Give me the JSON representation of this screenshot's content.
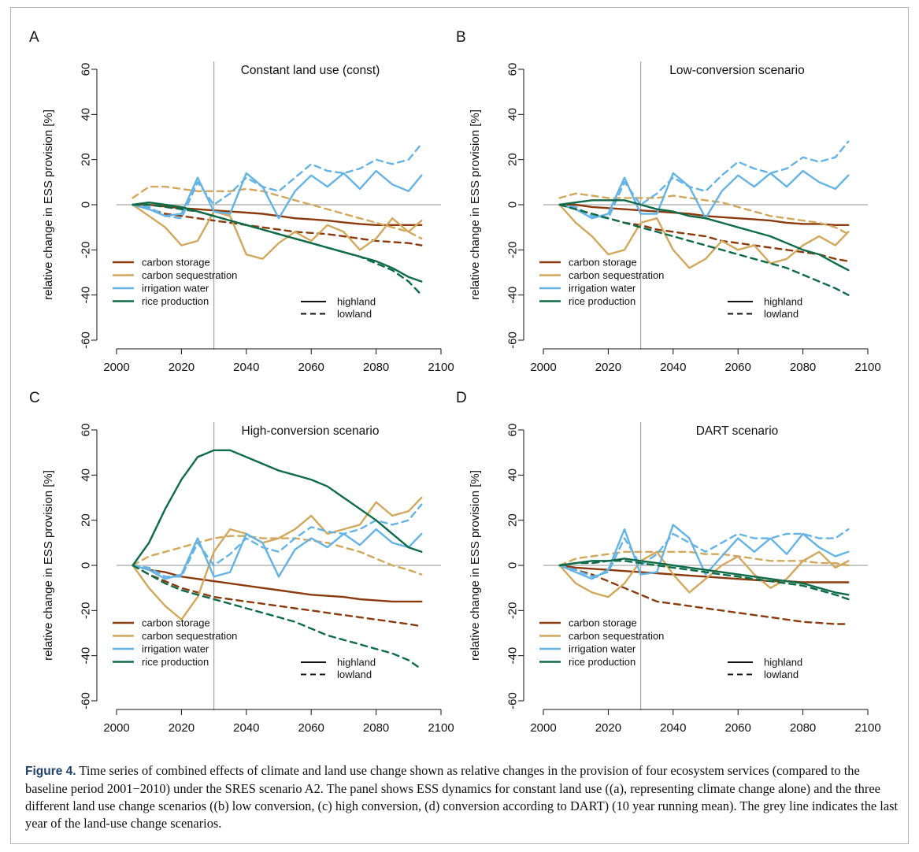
{
  "figure": {
    "caption_label": "Figure 4.",
    "caption_text": " Time series of combined effects of climate and land use change shown as relative changes in the provision of four ecosystem services (compared to the baseline period 2001−2010) under the SRES scenario A2. The panel shows ESS dynamics for constant land use ((a), representing climate change alone) and the three different land use change scenarios ((b) low conversion, (c) high conversion, (d) conversion according to DART) (10 year running mean). The grey line indicates the last year of the land-use change scenarios."
  },
  "colors": {
    "carbon_storage": "#8b3a0e",
    "carbon_sequestration": "#d2a75b",
    "irrigation_water": "#63b3e6",
    "rice_production": "#0e6b47",
    "reference_line": "#a6a6a6"
  },
  "legend": {
    "services": [
      "carbon storage",
      "carbon sequestration",
      "irrigation water",
      "rice production"
    ],
    "line_types": [
      "highland",
      "lowland"
    ]
  },
  "chart_data": [
    {
      "panel": "A",
      "type": "line",
      "title": "Constant land use (const)",
      "ylabel": "relative change in ESS provision [%]",
      "xlim": [
        2000,
        2100
      ],
      "ylim": [
        -60,
        60
      ],
      "xticks": [
        2000,
        2020,
        2040,
        2060,
        2080,
        2100
      ],
      "yticks": [
        -60,
        -40,
        -20,
        0,
        20,
        40,
        60
      ],
      "vline": 2030,
      "x": [
        2005,
        2010,
        2015,
        2020,
        2025,
        2030,
        2035,
        2040,
        2045,
        2050,
        2055,
        2060,
        2065,
        2070,
        2075,
        2080,
        2085,
        2090,
        2094
      ],
      "series": [
        {
          "name": "carbon storage",
          "style": "highland",
          "values": [
            0,
            0,
            -0.8,
            -1.5,
            -2,
            -2.5,
            -3,
            -3.5,
            -4,
            -5,
            -6,
            -6.5,
            -7,
            -7.8,
            -8.5,
            -9,
            -9,
            -9,
            -9
          ]
        },
        {
          "name": "carbon storage",
          "style": "lowland",
          "values": [
            0,
            -2,
            -4,
            -5,
            -6,
            -7,
            -8,
            -9,
            -10,
            -11,
            -12,
            -12.5,
            -13,
            -14,
            -15,
            -16,
            -16.5,
            -17,
            -18
          ]
        },
        {
          "name": "carbon sequestration",
          "style": "highland",
          "values": [
            0,
            -5,
            -10,
            -18,
            -16,
            -3,
            -5,
            -22,
            -24,
            -17,
            -12,
            -16,
            -9,
            -12,
            -20,
            -15,
            -6,
            -12,
            -7
          ]
        },
        {
          "name": "carbon sequestration",
          "style": "lowland",
          "values": [
            3,
            8,
            8,
            7,
            6,
            6,
            6,
            7,
            6,
            4,
            2,
            0,
            -2,
            -4,
            -6,
            -8,
            -10,
            -12,
            -15
          ]
        },
        {
          "name": "irrigation water",
          "style": "highland",
          "values": [
            0,
            -2,
            -5,
            -4,
            12,
            -3,
            -4,
            14,
            8,
            -6,
            6,
            13,
            8,
            14,
            7,
            15,
            9,
            6,
            13
          ]
        },
        {
          "name": "irrigation water",
          "style": "lowland",
          "values": [
            0,
            -1,
            -5,
            -6,
            10,
            0,
            5,
            12,
            8,
            6,
            12,
            18,
            15,
            14,
            16,
            20,
            18,
            20,
            27
          ]
        },
        {
          "name": "rice production",
          "style": "highland",
          "values": [
            0,
            1,
            0,
            -1,
            -3,
            -5,
            -7,
            -9,
            -11,
            -13,
            -15,
            -17,
            -19,
            -21,
            -23,
            -25,
            -28,
            -32,
            -34
          ]
        },
        {
          "name": "rice production",
          "style": "lowland",
          "values": [
            0,
            0,
            -1,
            -2,
            -3,
            -5,
            -7,
            -9,
            -11,
            -13,
            -15,
            -17,
            -19,
            -21,
            -23,
            -26,
            -29,
            -34,
            -40
          ]
        }
      ]
    },
    {
      "panel": "B",
      "type": "line",
      "title": "Low-conversion scenario",
      "ylabel": "relative change in ESS provision [%]",
      "xlim": [
        2000,
        2100
      ],
      "ylim": [
        -60,
        60
      ],
      "xticks": [
        2000,
        2020,
        2040,
        2060,
        2080,
        2100
      ],
      "yticks": [
        -60,
        -40,
        -20,
        0,
        20,
        40,
        60
      ],
      "vline": 2030,
      "x": [
        2005,
        2010,
        2015,
        2020,
        2025,
        2030,
        2035,
        2040,
        2045,
        2050,
        2055,
        2060,
        2065,
        2070,
        2075,
        2080,
        2085,
        2090,
        2094
      ],
      "series": [
        {
          "name": "carbon storage",
          "style": "highland",
          "values": [
            0,
            0,
            -1,
            -1.5,
            -2,
            -2.5,
            -3,
            -3.5,
            -4,
            -5,
            -5.5,
            -6,
            -6.5,
            -7,
            -8,
            -8.5,
            -8.5,
            -9,
            -9
          ]
        },
        {
          "name": "carbon storage",
          "style": "lowland",
          "values": [
            0,
            -2,
            -4,
            -6,
            -8,
            -9,
            -11,
            -12,
            -13,
            -14,
            -16,
            -17,
            -18,
            -19,
            -20,
            -21,
            -22,
            -24,
            -25
          ]
        },
        {
          "name": "carbon sequestration",
          "style": "highland",
          "values": [
            0,
            -8,
            -14,
            -22,
            -20,
            -8,
            -6,
            -20,
            -28,
            -24,
            -16,
            -20,
            -18,
            -26,
            -24,
            -18,
            -14,
            -18,
            -12
          ]
        },
        {
          "name": "carbon sequestration",
          "style": "lowland",
          "values": [
            3,
            5,
            4,
            3,
            3,
            3,
            3,
            4,
            3,
            2,
            1,
            -1,
            -3,
            -5,
            -6,
            -7,
            -8,
            -10,
            -13
          ]
        },
        {
          "name": "irrigation water",
          "style": "highland",
          "values": [
            0,
            -2,
            -6,
            -4,
            12,
            -4,
            -4,
            14,
            8,
            -6,
            6,
            13,
            8,
            14,
            8,
            15,
            10,
            7,
            13
          ]
        },
        {
          "name": "irrigation water",
          "style": "lowland",
          "values": [
            0,
            -1,
            -5,
            -6,
            10,
            0,
            5,
            12,
            8,
            6,
            13,
            19,
            16,
            14,
            16,
            21,
            19,
            21,
            28
          ]
        },
        {
          "name": "rice production",
          "style": "highland",
          "values": [
            0,
            1,
            2,
            2,
            2,
            0,
            -2,
            -3,
            -5,
            -6,
            -8,
            -10,
            -12,
            -14,
            -17,
            -20,
            -22,
            -26,
            -29
          ]
        },
        {
          "name": "rice production",
          "style": "lowland",
          "values": [
            0,
            -2,
            -4,
            -6,
            -8,
            -10,
            -12,
            -14,
            -16,
            -18,
            -20,
            -22,
            -24,
            -26,
            -28,
            -31,
            -34,
            -37,
            -40
          ]
        }
      ]
    },
    {
      "panel": "C",
      "type": "line",
      "title": "High-conversion scenario",
      "ylabel": "relative change in ESS provision [%]",
      "xlim": [
        2000,
        2100
      ],
      "ylim": [
        -60,
        60
      ],
      "xticks": [
        2000,
        2020,
        2040,
        2060,
        2080,
        2100
      ],
      "yticks": [
        -60,
        -40,
        -20,
        0,
        20,
        40,
        60
      ],
      "vline": 2030,
      "x": [
        2005,
        2010,
        2015,
        2020,
        2025,
        2030,
        2035,
        2040,
        2045,
        2050,
        2055,
        2060,
        2065,
        2070,
        2075,
        2080,
        2085,
        2090,
        2094
      ],
      "series": [
        {
          "name": "carbon storage",
          "style": "highland",
          "values": [
            0,
            -2,
            -3,
            -5,
            -6,
            -7,
            -8,
            -9,
            -10,
            -11,
            -12,
            -13,
            -13.5,
            -14,
            -15,
            -15.5,
            -16,
            -16,
            -16
          ]
        },
        {
          "name": "carbon storage",
          "style": "lowland",
          "values": [
            0,
            -4,
            -7,
            -10,
            -12,
            -14,
            -15,
            -16,
            -17,
            -18,
            -19,
            -20,
            -21,
            -22,
            -23,
            -24,
            -25,
            -26,
            -27
          ]
        },
        {
          "name": "carbon sequestration",
          "style": "highland",
          "values": [
            0,
            -10,
            -18,
            -24,
            -14,
            6,
            16,
            14,
            10,
            12,
            16,
            22,
            14,
            16,
            18,
            28,
            22,
            24,
            30
          ]
        },
        {
          "name": "carbon sequestration",
          "style": "lowland",
          "values": [
            0,
            4,
            6,
            8,
            10,
            12,
            13,
            13,
            12,
            12,
            12,
            11,
            10,
            8,
            6,
            3,
            0,
            -2,
            -4
          ]
        },
        {
          "name": "irrigation water",
          "style": "highland",
          "values": [
            0,
            -2,
            -6,
            -4,
            12,
            -5,
            -3,
            14,
            10,
            -5,
            7,
            12,
            8,
            14,
            9,
            16,
            10,
            8,
            14
          ]
        },
        {
          "name": "irrigation water",
          "style": "lowland",
          "values": [
            0,
            -1,
            -5,
            -5,
            10,
            0,
            5,
            12,
            8,
            6,
            12,
            17,
            15,
            14,
            16,
            20,
            18,
            20,
            27
          ]
        },
        {
          "name": "rice production",
          "style": "highland",
          "values": [
            0,
            10,
            25,
            38,
            48,
            51,
            51,
            48,
            45,
            42,
            40,
            38,
            35,
            30,
            25,
            20,
            14,
            8,
            6
          ]
        },
        {
          "name": "rice production",
          "style": "lowland",
          "values": [
            0,
            -4,
            -8,
            -11,
            -13,
            -15,
            -17,
            -19,
            -21,
            -23,
            -25,
            -28,
            -31,
            -33,
            -35,
            -37,
            -39,
            -42,
            -46
          ]
        }
      ]
    },
    {
      "panel": "D",
      "type": "line",
      "title": "DART scenario",
      "ylabel": "relative change in ESS provision [%]",
      "xlim": [
        2000,
        2100
      ],
      "ylim": [
        -60,
        60
      ],
      "xticks": [
        2000,
        2020,
        2040,
        2060,
        2080,
        2100
      ],
      "yticks": [
        -60,
        -40,
        -20,
        0,
        20,
        40,
        60
      ],
      "vline": 2030,
      "x": [
        2005,
        2010,
        2015,
        2020,
        2025,
        2030,
        2035,
        2040,
        2045,
        2050,
        2055,
        2060,
        2065,
        2070,
        2075,
        2080,
        2085,
        2090,
        2094
      ],
      "series": [
        {
          "name": "carbon storage",
          "style": "highland",
          "values": [
            0,
            -1,
            -1.5,
            -2,
            -2.5,
            -3,
            -3.5,
            -4,
            -4.5,
            -5,
            -5.5,
            -6,
            -6.5,
            -7,
            -7,
            -7.5,
            -7.5,
            -7.5,
            -7.5
          ]
        },
        {
          "name": "carbon storage",
          "style": "lowland",
          "values": [
            0,
            -2,
            -4,
            -7,
            -10,
            -13,
            -16,
            -17,
            -18,
            -19,
            -20,
            -21,
            -22,
            -23,
            -24,
            -25,
            -25.5,
            -26,
            -26
          ]
        },
        {
          "name": "carbon sequestration",
          "style": "highland",
          "values": [
            0,
            -8,
            -12,
            -14,
            -8,
            2,
            6,
            -4,
            -12,
            -6,
            0,
            4,
            -4,
            -10,
            -6,
            2,
            6,
            -1,
            2
          ]
        },
        {
          "name": "carbon sequestration",
          "style": "lowland",
          "values": [
            0,
            3,
            4,
            5,
            6,
            6,
            6,
            6,
            6,
            5,
            5,
            4,
            3,
            2,
            2,
            2,
            1,
            1,
            0
          ]
        },
        {
          "name": "irrigation water",
          "style": "highland",
          "values": [
            0,
            -3,
            -6,
            -2,
            16,
            -4,
            -3,
            18,
            12,
            -4,
            4,
            12,
            6,
            12,
            5,
            14,
            8,
            4,
            6
          ]
        },
        {
          "name": "irrigation water",
          "style": "lowland",
          "values": [
            0,
            -2,
            -5,
            -3,
            12,
            0,
            5,
            14,
            10,
            6,
            10,
            14,
            12,
            12,
            14,
            14,
            12,
            12,
            16
          ]
        },
        {
          "name": "rice production",
          "style": "highland",
          "values": [
            0,
            1,
            2,
            2,
            3,
            2,
            1,
            0,
            -1,
            -2,
            -3,
            -4,
            -5,
            -6,
            -7,
            -8,
            -10,
            -12,
            -13
          ]
        },
        {
          "name": "rice production",
          "style": "lowland",
          "values": [
            0,
            1,
            1,
            2,
            2,
            1,
            0,
            -1,
            -2,
            -3,
            -4,
            -5,
            -6,
            -7,
            -8,
            -9,
            -11,
            -13,
            -15
          ]
        }
      ]
    }
  ]
}
